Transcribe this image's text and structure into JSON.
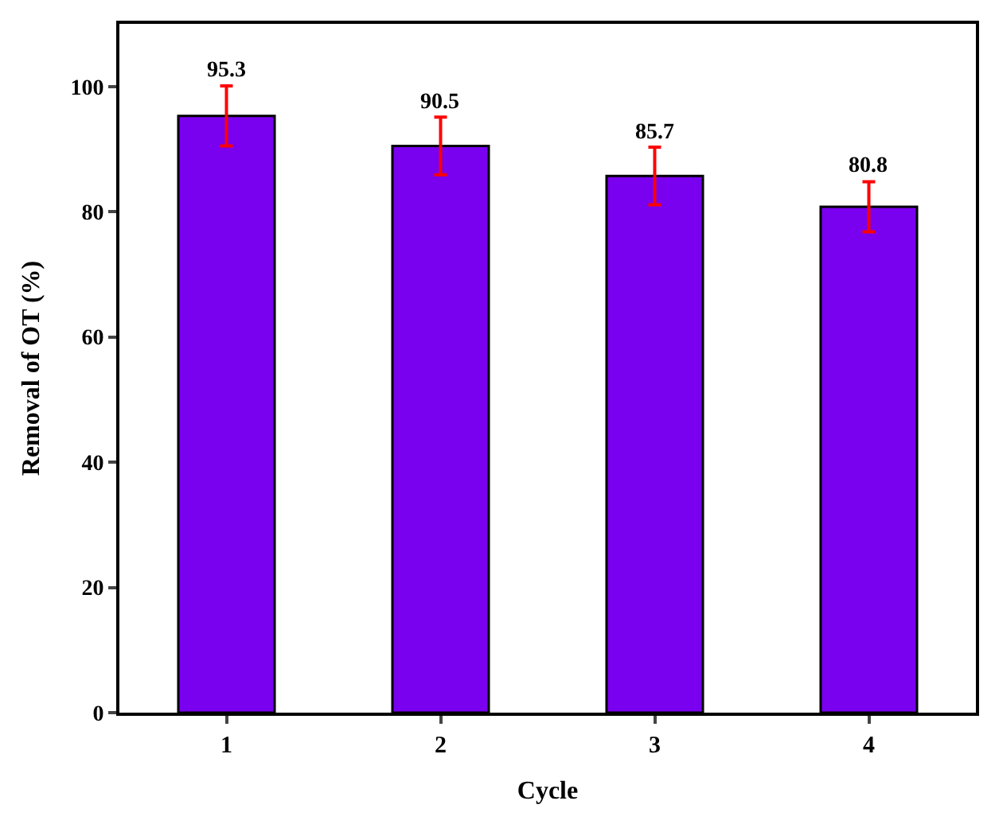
{
  "chart_data": {
    "type": "bar",
    "xlabel": "Cycle",
    "ylabel": "Removal of OT (%)",
    "categories": [
      "1",
      "2",
      "3",
      "4"
    ],
    "values": [
      95.3,
      90.5,
      85.7,
      80.8
    ],
    "errors": [
      4.8,
      4.6,
      4.6,
      4.0
    ],
    "color": "#7a00f0",
    "data_labels": true,
    "ylim": [
      0,
      110
    ],
    "yticks": [
      0,
      20,
      40,
      60,
      80,
      100
    ]
  }
}
